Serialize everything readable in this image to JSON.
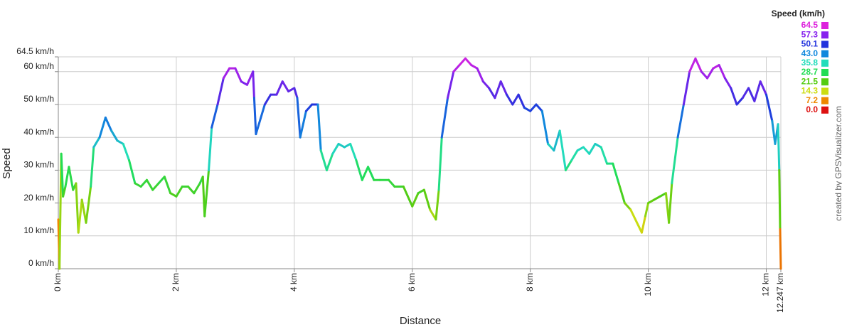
{
  "chart_data": {
    "type": "line",
    "x_label": "Distance",
    "y_label": "Speed",
    "credit": "created by GPSVisualizer.com",
    "legend_title": "Speed (km/h)",
    "legend": [
      {
        "value": 64.5,
        "color": "#dd22dd"
      },
      {
        "value": 57.3,
        "color": "#8822ee"
      },
      {
        "value": 50.1,
        "color": "#2233dd"
      },
      {
        "value": 43,
        "label": "43.0",
        "color": "#1188dd"
      },
      {
        "value": 35.8,
        "color": "#22ddbb"
      },
      {
        "value": 28.7,
        "color": "#22dd55"
      },
      {
        "value": 21.5,
        "color": "#55cc11"
      },
      {
        "value": 14.3,
        "color": "#ccdd11"
      },
      {
        "value": 7.2,
        "color": "#ee8800"
      },
      {
        "value": 0,
        "label": "0.0",
        "color": "#dd1111"
      }
    ],
    "grid": true,
    "xlim": [
      0,
      12.247
    ],
    "ylim": [
      0,
      64.5
    ],
    "xticks": [
      {
        "value": 0,
        "label": "0 km"
      },
      {
        "value": 2,
        "label": "2 km"
      },
      {
        "value": 4,
        "label": "4 km"
      },
      {
        "value": 6,
        "label": "6 km"
      },
      {
        "value": 8,
        "label": "8 km"
      },
      {
        "value": 10,
        "label": "10 km"
      },
      {
        "value": 12,
        "label": "12 km"
      },
      {
        "value": 12.247,
        "label": "12.247 km"
      }
    ],
    "yticks": [
      {
        "value": 0,
        "label": "0 km/h"
      },
      {
        "value": 10,
        "label": "10 km/h"
      },
      {
        "value": 20,
        "label": "20 km/h"
      },
      {
        "value": 30,
        "label": "30 km/h"
      },
      {
        "value": 40,
        "label": "40 km/h"
      },
      {
        "value": 50,
        "label": "50 km/h"
      },
      {
        "value": 60,
        "label": "60 km/h"
      },
      {
        "value": 64.5,
        "label": "64.5 km/h"
      }
    ],
    "x": [
      0,
      0.02,
      0.05,
      0.08,
      0.12,
      0.18,
      0.25,
      0.3,
      0.34,
      0.4,
      0.47,
      0.55,
      0.6,
      0.7,
      0.8,
      0.9,
      1.0,
      1.1,
      1.2,
      1.3,
      1.4,
      1.5,
      1.6,
      1.7,
      1.8,
      1.9,
      2.0,
      2.1,
      2.2,
      2.3,
      2.4,
      2.45,
      2.48,
      2.55,
      2.6,
      2.7,
      2.8,
      2.9,
      3.0,
      3.1,
      3.2,
      3.3,
      3.32,
      3.35,
      3.5,
      3.6,
      3.7,
      3.8,
      3.9,
      4.0,
      4.05,
      4.1,
      4.2,
      4.3,
      4.4,
      4.45,
      4.55,
      4.65,
      4.75,
      4.85,
      4.95,
      5.05,
      5.15,
      5.25,
      5.35,
      5.45,
      5.6,
      5.7,
      5.85,
      6.0,
      6.1,
      6.2,
      6.3,
      6.4,
      6.45,
      6.5,
      6.6,
      6.7,
      6.8,
      6.9,
      7.0,
      7.1,
      7.2,
      7.3,
      7.4,
      7.5,
      7.6,
      7.7,
      7.8,
      7.9,
      8.0,
      8.1,
      8.2,
      8.3,
      8.4,
      8.5,
      8.6,
      8.7,
      8.8,
      8.9,
      9.0,
      9.1,
      9.2,
      9.3,
      9.4,
      9.5,
      9.6,
      9.7,
      9.89,
      9.95,
      10.0,
      10.1,
      10.2,
      10.3,
      10.35,
      10.4,
      10.5,
      10.6,
      10.7,
      10.8,
      10.9,
      11.0,
      11.1,
      11.2,
      11.3,
      11.4,
      11.5,
      11.6,
      11.7,
      11.8,
      11.9,
      12.0,
      12.1,
      12.15,
      12.2,
      12.22,
      12.235,
      12.247
    ],
    "values": [
      15,
      0,
      35,
      22,
      25,
      31,
      24,
      26,
      11,
      21,
      14,
      25,
      37,
      40,
      46,
      42,
      39,
      38,
      33,
      26,
      25,
      27,
      24,
      26,
      28,
      23,
      22,
      25,
      25,
      23,
      26,
      28,
      16,
      30,
      43,
      50,
      58,
      61,
      61,
      57,
      56,
      60,
      52,
      41,
      50,
      53,
      53,
      57,
      54,
      55,
      52,
      40,
      48,
      50,
      50,
      36,
      30,
      35,
      38,
      37,
      38,
      33,
      27,
      31,
      27,
      27,
      27,
      25,
      25,
      19,
      23,
      24,
      18,
      15,
      24,
      40,
      52,
      60,
      62,
      64,
      62,
      61,
      57,
      55,
      52,
      57,
      53,
      50,
      53,
      49,
      48,
      50,
      48,
      38,
      36,
      42,
      30,
      33,
      36,
      37,
      35,
      38,
      37,
      32,
      32,
      26,
      20,
      18,
      11,
      16,
      20,
      21,
      22,
      23,
      14,
      26,
      40,
      50,
      60,
      64,
      60,
      58,
      61,
      62,
      58,
      55,
      50,
      52,
      55,
      51,
      57,
      53,
      45,
      38,
      44,
      30,
      12,
      0
    ]
  }
}
